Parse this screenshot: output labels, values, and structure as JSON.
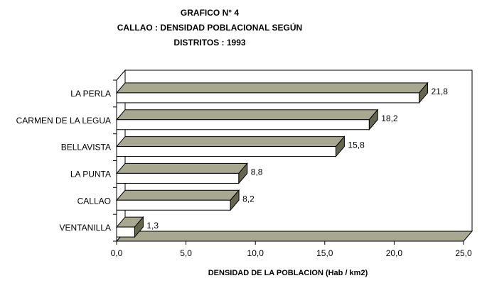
{
  "chart_data": {
    "type": "bar",
    "orientation": "horizontal",
    "title_lines": [
      "GRAFICO N° 4",
      "CALLAO : DENSIDAD POBLACIONAL SEGÚN",
      "DISTRITOS : 1993"
    ],
    "xlabel": "DENSIDAD DE LA POBLACION (Hab / km2)",
    "ylabel": "",
    "categories": [
      "LA PERLA",
      "CARMEN DE LA LEGUA",
      "BELLAVISTA",
      "LA PUNTA",
      "CALLAO",
      "VENTANILLA"
    ],
    "values": [
      21.8,
      18.2,
      15.8,
      8.8,
      8.2,
      1.3
    ],
    "data_labels": [
      "21,8",
      "18,2",
      "15,8",
      "8,8",
      "8,2",
      "1,3"
    ],
    "xlim": [
      0,
      25
    ],
    "x_ticks": [
      0,
      5,
      10,
      15,
      20,
      25
    ],
    "x_tick_labels": [
      "0,0",
      "5,0",
      "10,0",
      "15,0",
      "20,0",
      "25,0"
    ],
    "grid": false,
    "style": "3d",
    "colors": {
      "bar_front": "#ffffff",
      "bar_top": "#a8a890",
      "bar_side": "#66664e",
      "wall": "#ffffff",
      "floor": "#a8a890",
      "outline": "#000000"
    }
  }
}
